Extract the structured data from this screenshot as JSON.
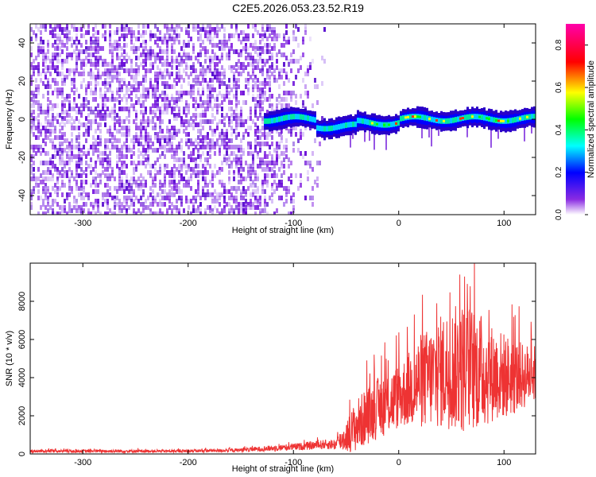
{
  "title": "C2E5.2026.053.23.52.R19",
  "chart_data": [
    {
      "type": "heatmap",
      "name": "spectrogram",
      "xlabel": "Height of straight line (km)",
      "ylabel": "Frequency (Hz)",
      "xlim": [
        -350,
        130
      ],
      "ylim": [
        -50,
        50
      ],
      "xticks": [
        -300,
        -200,
        -100,
        0,
        100
      ],
      "yticks": [
        -40,
        -20,
        0,
        20,
        40
      ],
      "description_of_data": {
        "noise_region_km": [
          -350,
          -70
        ],
        "signal_start_km": -130,
        "signal_center_freq_hz": 0,
        "signal_halfwidth_hz": 5
      },
      "colorbar": {
        "label": "Normalized spectral amplitude",
        "range": [
          0.0,
          0.9
        ],
        "ticks": [
          0.0,
          0.2,
          0.4,
          0.6,
          0.8
        ],
        "tick_labels": [
          "0.0",
          "0.2",
          "0.4",
          "0.6",
          "0.8"
        ],
        "colors": [
          "#ffffff",
          "#8a2be2",
          "#0000ff",
          "#00ffff",
          "#00ff00",
          "#ffff00",
          "#ff0000",
          "#ff00aa"
        ]
      }
    },
    {
      "type": "line",
      "name": "snr",
      "xlabel": "Height of straight line (km)",
      "ylabel": "SNR (10 * v/v)",
      "xlim": [
        -350,
        130
      ],
      "ylim": [
        0,
        10000
      ],
      "xticks": [
        -300,
        -200,
        -100,
        0,
        100
      ],
      "yticks": [
        0,
        2000,
        4000,
        6000,
        8000
      ],
      "color": "#ee3333",
      "envelope": {
        "x": [
          -350,
          -200,
          -150,
          -120,
          -90,
          -70,
          -60,
          -50,
          -40,
          -30,
          -20,
          -10,
          0,
          10,
          20,
          30,
          40,
          50,
          60,
          70,
          80,
          90,
          100,
          110,
          120,
          130
        ],
        "mean": [
          150,
          150,
          200,
          300,
          400,
          500,
          500,
          900,
          1500,
          2000,
          2400,
          2700,
          3000,
          3400,
          3800,
          4000,
          4300,
          4500,
          4500,
          4500,
          4300,
          4200,
          4100,
          4000,
          4100,
          4200
        ],
        "amplitude": [
          80,
          80,
          100,
          150,
          200,
          250,
          300,
          800,
          1400,
          1500,
          1600,
          1700,
          1700,
          2000,
          2500,
          2700,
          3000,
          3200,
          3500,
          3300,
          3000,
          2500,
          2300,
          2000,
          1700,
          1500
        ]
      }
    }
  ]
}
